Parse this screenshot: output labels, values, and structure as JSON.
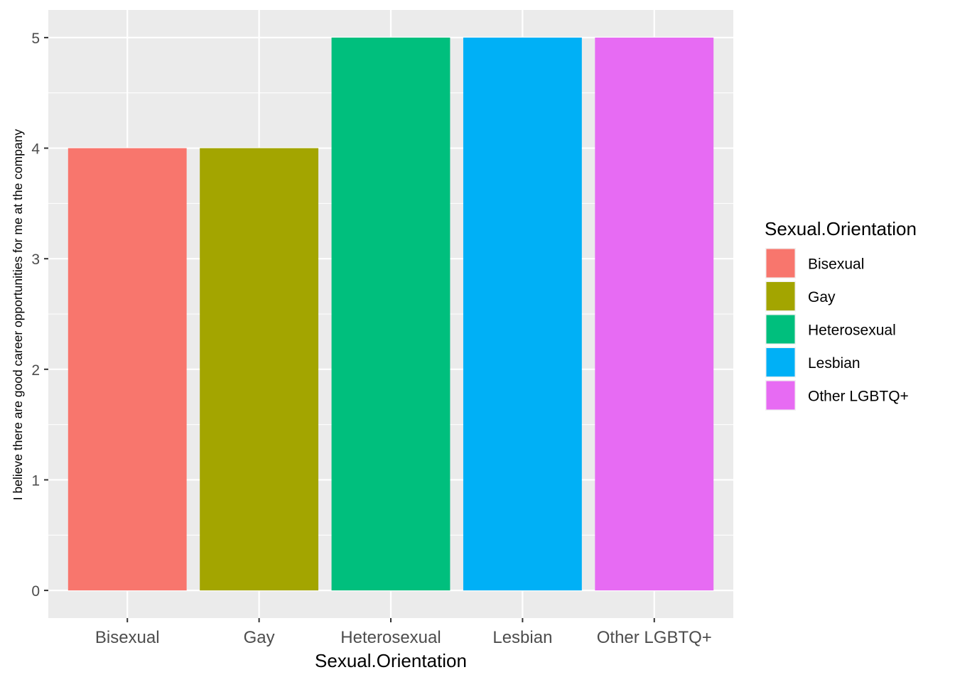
{
  "chart_data": {
    "type": "bar",
    "categories": [
      "Bisexual",
      "Gay",
      "Heterosexual",
      "Lesbian",
      "Other LGBTQ+"
    ],
    "values": [
      4,
      4,
      5,
      5,
      5
    ],
    "colors": [
      "#F8766D",
      "#A3A500",
      "#00BF7D",
      "#00B0F6",
      "#E76BF3"
    ],
    "xlabel": "Sexual.Orientation",
    "ylabel": "I believe there are good career opportunities for me at the company",
    "ylim": [
      -0.25,
      5.25
    ],
    "yticks": [
      0,
      1,
      2,
      3,
      4,
      5
    ],
    "grid": true,
    "panel_background": "#EBEBEB",
    "legend": {
      "title": "Sexual.Orientation",
      "placement": "right",
      "entries": [
        "Bisexual",
        "Gay",
        "Heterosexual",
        "Lesbian",
        "Other LGBTQ+"
      ]
    }
  }
}
